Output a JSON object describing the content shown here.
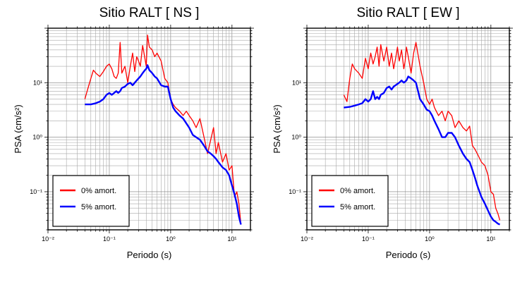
{
  "chart_data": [
    {
      "type": "line",
      "title": "Sitio RALT [ NS ]",
      "xlabel": "Periodo (s)",
      "ylabel": "PSA (cm/s²)",
      "x_scale": "log",
      "y_scale": "log",
      "xlim": [
        0.01,
        20
      ],
      "ylim": [
        0.02,
        100
      ],
      "x_ticks": [
        "10⁻²",
        "10⁻¹",
        "10⁰",
        "10¹"
      ],
      "y_ticks": [
        "10⁻¹",
        "10⁰",
        "10¹"
      ],
      "grid": true,
      "legend_position": "bottom-left",
      "series": [
        {
          "name": "0% amort.",
          "color": "#ff0000",
          "x": [
            0.04,
            0.045,
            0.05,
            0.055,
            0.06,
            0.07,
            0.08,
            0.09,
            0.1,
            0.11,
            0.12,
            0.13,
            0.14,
            0.15,
            0.16,
            0.18,
            0.2,
            0.22,
            0.24,
            0.26,
            0.28,
            0.3,
            0.32,
            0.35,
            0.38,
            0.4,
            0.42,
            0.45,
            0.5,
            0.55,
            0.6,
            0.7,
            0.8,
            0.9,
            1.0,
            1.1,
            1.2,
            1.4,
            1.6,
            1.8,
            2.0,
            2.3,
            2.6,
            3.0,
            3.5,
            4.0,
            4.5,
            5.0,
            5.5,
            6.0,
            7.0,
            8.0,
            9.0,
            10.0,
            11.0,
            12.0,
            13.0,
            14.0
          ],
          "y": [
            5,
            8,
            12,
            17,
            15,
            13,
            16,
            20,
            22,
            18,
            13,
            12,
            15,
            55,
            15,
            20,
            10,
            20,
            35,
            16,
            30,
            25,
            20,
            48,
            28,
            20,
            75,
            45,
            40,
            30,
            35,
            25,
            12,
            10,
            5,
            4,
            3.5,
            3,
            2.5,
            3,
            2.5,
            2,
            1.5,
            2.2,
            1,
            0.5,
            0.9,
            1.5,
            0.5,
            0.8,
            0.35,
            0.5,
            0.25,
            0.3,
            0.08,
            0.1,
            0.06,
            0.025
          ]
        },
        {
          "name": "5% amort.",
          "color": "#0000ff",
          "x": [
            0.04,
            0.05,
            0.06,
            0.07,
            0.08,
            0.09,
            0.1,
            0.11,
            0.12,
            0.13,
            0.14,
            0.15,
            0.16,
            0.18,
            0.2,
            0.22,
            0.24,
            0.26,
            0.28,
            0.3,
            0.32,
            0.35,
            0.38,
            0.4,
            0.42,
            0.45,
            0.5,
            0.55,
            0.6,
            0.7,
            0.8,
            0.9,
            1.0,
            1.1,
            1.2,
            1.4,
            1.6,
            1.8,
            2.0,
            2.3,
            2.6,
            3.0,
            3.5,
            4.0,
            4.5,
            5.0,
            5.5,
            6.0,
            7.0,
            8.0,
            9.0,
            10.0,
            11.0,
            12.0,
            13.0,
            14.0
          ],
          "y": [
            4,
            4,
            4.2,
            4.5,
            5,
            6,
            6.5,
            6,
            6.5,
            7,
            6.5,
            7,
            8,
            8.5,
            9.5,
            10,
            9,
            10,
            11,
            12,
            13,
            15,
            17,
            18,
            21,
            17,
            15,
            13,
            12,
            9,
            8.5,
            8.5,
            5,
            3.5,
            3,
            2.5,
            2.2,
            1.8,
            1.5,
            1.1,
            1,
            0.9,
            0.7,
            0.55,
            0.5,
            0.45,
            0.4,
            0.35,
            0.28,
            0.25,
            0.2,
            0.13,
            0.09,
            0.06,
            0.035,
            0.025
          ]
        }
      ]
    },
    {
      "type": "line",
      "title": "Sitio RALT [ EW ]",
      "xlabel": "Periodo (s)",
      "ylabel": "PSA (cm/s²)",
      "x_scale": "log",
      "y_scale": "log",
      "xlim": [
        0.01,
        20
      ],
      "ylim": [
        0.02,
        100
      ],
      "x_ticks": [
        "10⁻²",
        "10⁻¹",
        "10⁰",
        "10¹"
      ],
      "y_ticks": [
        "10⁻¹",
        "10⁰",
        "10¹"
      ],
      "grid": true,
      "legend_position": "bottom-left",
      "series": [
        {
          "name": "0% amort.",
          "color": "#ff0000",
          "x": [
            0.04,
            0.045,
            0.05,
            0.055,
            0.06,
            0.07,
            0.08,
            0.09,
            0.1,
            0.11,
            0.12,
            0.13,
            0.14,
            0.15,
            0.16,
            0.18,
            0.2,
            0.22,
            0.24,
            0.26,
            0.28,
            0.3,
            0.32,
            0.35,
            0.38,
            0.4,
            0.42,
            0.45,
            0.5,
            0.55,
            0.6,
            0.7,
            0.8,
            0.9,
            1.0,
            1.1,
            1.2,
            1.4,
            1.6,
            1.8,
            2.0,
            2.3,
            2.6,
            3.0,
            3.5,
            4.0,
            4.5,
            5.0,
            5.5,
            6.0,
            7.0,
            8.0,
            9.0,
            10.0,
            11.0,
            12.0,
            13.0,
            14.0
          ],
          "y": [
            6,
            4.5,
            12,
            22,
            18,
            15,
            12,
            28,
            18,
            35,
            22,
            30,
            45,
            20,
            50,
            25,
            45,
            20,
            35,
            18,
            28,
            45,
            25,
            40,
            18,
            25,
            45,
            30,
            15,
            35,
            55,
            20,
            10,
            5,
            4,
            5,
            3.5,
            2.5,
            3,
            2,
            3,
            2.5,
            1.5,
            2,
            1.5,
            1.3,
            1.6,
            0.7,
            0.6,
            0.5,
            0.35,
            0.3,
            0.2,
            0.1,
            0.09,
            0.05,
            0.04,
            0.03
          ]
        },
        {
          "name": "5% amort.",
          "color": "#0000ff",
          "x": [
            0.04,
            0.05,
            0.06,
            0.07,
            0.08,
            0.09,
            0.1,
            0.11,
            0.12,
            0.13,
            0.14,
            0.15,
            0.16,
            0.18,
            0.2,
            0.22,
            0.24,
            0.26,
            0.28,
            0.3,
            0.32,
            0.35,
            0.38,
            0.4,
            0.42,
            0.45,
            0.5,
            0.55,
            0.6,
            0.7,
            0.8,
            0.9,
            1.0,
            1.1,
            1.2,
            1.4,
            1.6,
            1.8,
            2.0,
            2.3,
            2.6,
            3.0,
            3.5,
            4.0,
            4.5,
            5.0,
            5.5,
            6.0,
            7.0,
            8.0,
            9.0,
            10.0,
            11.0,
            12.0,
            13.0,
            14.0
          ],
          "y": [
            3.5,
            3.6,
            3.8,
            4,
            4.2,
            5,
            4.5,
            5,
            7,
            5,
            5.5,
            5,
            6,
            6.5,
            8,
            8.5,
            7.5,
            8.5,
            9,
            9.5,
            10,
            11,
            10,
            10.5,
            11,
            13,
            12,
            11,
            10,
            5,
            4,
            3.2,
            3,
            2.5,
            2,
            1.4,
            1,
            1,
            1.2,
            1.2,
            1,
            0.7,
            0.5,
            0.4,
            0.35,
            0.25,
            0.18,
            0.13,
            0.08,
            0.06,
            0.045,
            0.035,
            0.03,
            0.028,
            0.026,
            0.025
          ]
        }
      ]
    }
  ]
}
